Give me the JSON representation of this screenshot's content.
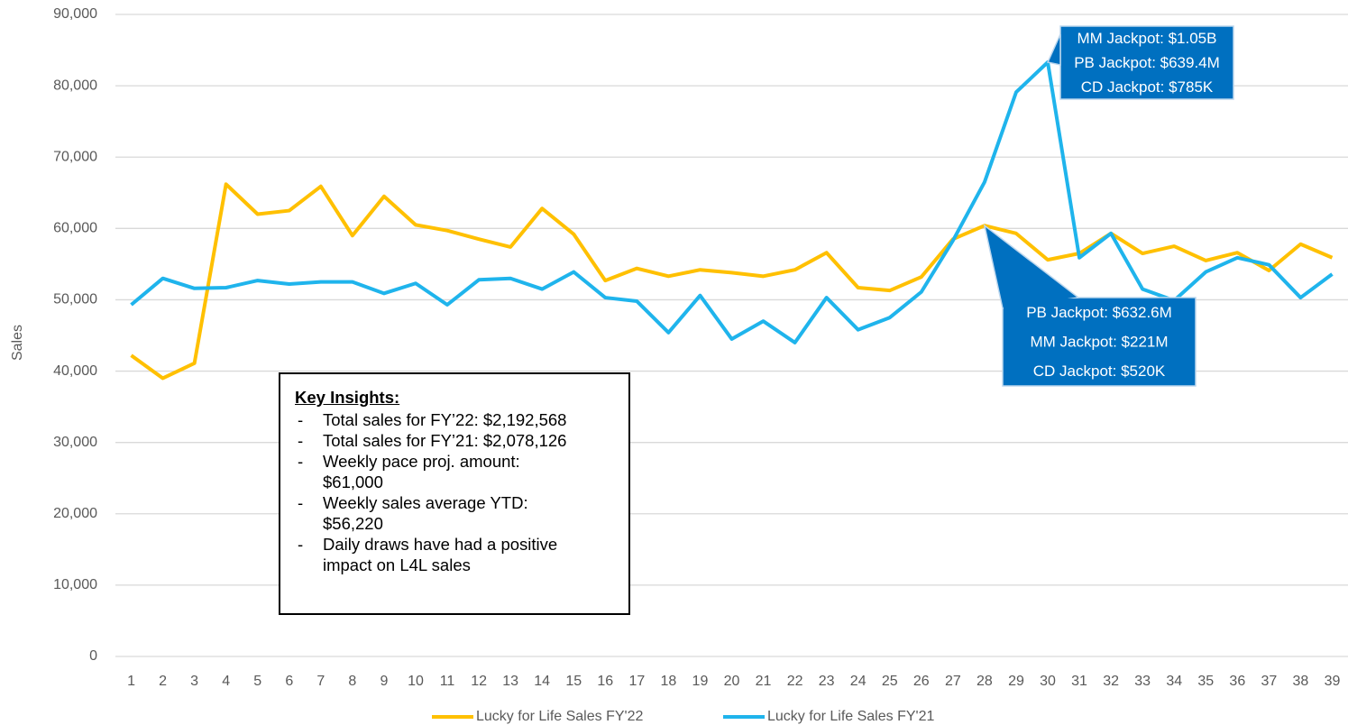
{
  "chart_data": {
    "type": "line",
    "y_label": "Sales",
    "categories": [
      "1",
      "2",
      "3",
      "4",
      "5",
      "6",
      "7",
      "8",
      "9",
      "10",
      "11",
      "12",
      "13",
      "14",
      "15",
      "16",
      "17",
      "18",
      "19",
      "20",
      "21",
      "22",
      "23",
      "24",
      "25",
      "26",
      "27",
      "28",
      "29",
      "30",
      "31",
      "32",
      "33",
      "34",
      "35",
      "36",
      "37",
      "38",
      "39"
    ],
    "series": [
      {
        "name": "Lucky for Life Sales FY'22",
        "color": "#ffc000",
        "values": [
          42200,
          39000,
          41100,
          66200,
          62000,
          62500,
          65900,
          59000,
          64500,
          60500,
          59700,
          58500,
          57400,
          62800,
          59200,
          52700,
          54400,
          53300,
          54200,
          53800,
          53300,
          54200,
          56600,
          51700,
          51300,
          53200,
          58500,
          60400,
          59300,
          55600,
          56500,
          59300,
          56500,
          57500,
          55500,
          56600,
          54100,
          57800,
          55900
        ]
      },
      {
        "name": "Lucky for Life Sales FY'21",
        "color": "#1fb4ec",
        "values": [
          49300,
          53000,
          51600,
          51700,
          52700,
          52200,
          52500,
          52500,
          50900,
          52300,
          49300,
          52800,
          53000,
          51500,
          53900,
          50300,
          49800,
          45400,
          50600,
          44500,
          47000,
          44000,
          50300,
          45800,
          47500,
          51100,
          58300,
          66500,
          79100,
          83300,
          55900,
          59300,
          51500,
          49900,
          53900,
          55900,
          54900,
          50300,
          53600
        ]
      }
    ],
    "ylim": [
      0,
      90000
    ],
    "yticks": [
      0,
      {
        "value": 10000,
        "label": "10,000"
      },
      {
        "value": 20000,
        "label": "20,000"
      },
      {
        "value": 30000,
        "label": "30,000"
      },
      {
        "value": 40000,
        "label": "40,000"
      },
      {
        "value": 50000,
        "label": "50,000"
      },
      {
        "value": 60000,
        "label": "60,000"
      },
      {
        "value": 70000,
        "label": "70,000"
      },
      {
        "value": 80000,
        "label": "80,000"
      },
      {
        "value": 90000,
        "label": "90,000"
      }
    ],
    "grid": true,
    "legend": "bottom",
    "annotations": [
      {
        "lines": [
          "MM Jackpot: $1.05B",
          "PB Jackpot: $639.4M",
          "CD Jackpot: $785K"
        ]
      },
      {
        "lines": [
          "PB Jackpot: $632.6M",
          "MM Jackpot: $221M",
          "CD Jackpot: $520K"
        ]
      }
    ],
    "insights": {
      "title": "Key Insights:",
      "items": [
        [
          "Total sales for FY’22: $2,192,568"
        ],
        [
          "Total sales for FY’21: $2,078,126"
        ],
        [
          "Weekly pace proj. amount:",
          "$61,000"
        ],
        [
          "Weekly sales average YTD:",
          "$56,220"
        ],
        [
          "Daily draws have had a positive",
          "impact on L4L sales"
        ]
      ]
    }
  }
}
